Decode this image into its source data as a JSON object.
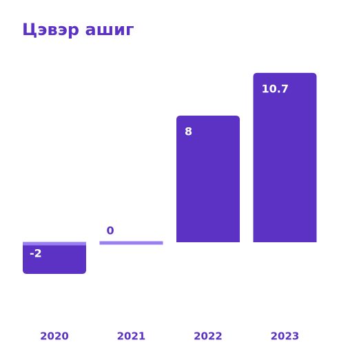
{
  "chart_data": {
    "type": "bar",
    "title": "Цэвэр ашиг",
    "categories": [
      "2020",
      "2021",
      "2022",
      "2023"
    ],
    "values": [
      -2,
      0,
      8,
      10.7
    ],
    "color": "#5b32c4",
    "baseline_color": "#9a7ff2"
  }
}
